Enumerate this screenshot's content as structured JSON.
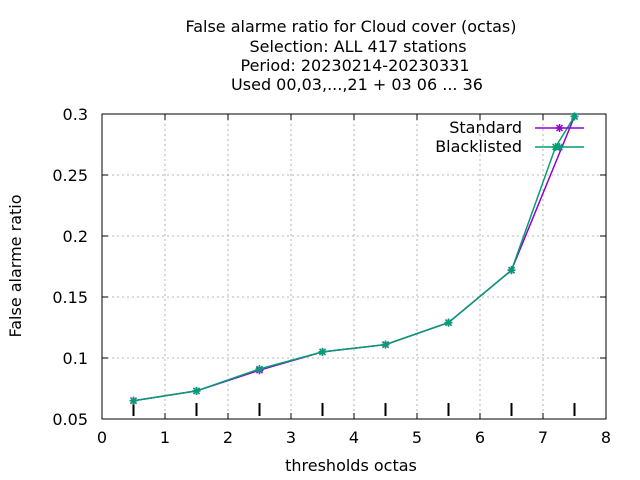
{
  "title_lines": [
    "False alarme ratio  for Cloud cover (octas)",
    "Selection: ALL    417 stations",
    "Period: 20230214-20230331",
    "Used  00,03,...,21  + 03 06 ... 36"
  ],
  "chart_data": {
    "type": "line",
    "xlabel": "thresholds octas",
    "ylabel": "False alarme ratio",
    "xlim": [
      0,
      8
    ],
    "ylim": [
      0.05,
      0.3
    ],
    "x_ticks": [
      0,
      1,
      2,
      3,
      4,
      5,
      6,
      7,
      8
    ],
    "y_ticks": [
      0.05,
      0.1,
      0.15,
      0.2,
      0.25,
      0.3
    ],
    "x_tick_labels": [
      "0",
      "1",
      "2",
      "3",
      "4",
      "5",
      "6",
      "7",
      "8"
    ],
    "y_tick_labels": [
      "0.05",
      "0.1",
      "0.15",
      "0.2",
      "0.25",
      "0.3"
    ],
    "grid": true,
    "legend_position": "top-right",
    "threshold_markers_x": [
      0.5,
      1.5,
      2.5,
      3.5,
      4.5,
      5.5,
      6.5,
      7.5
    ],
    "series": [
      {
        "name": "Standard",
        "color": "#9400d3",
        "x": [
          0.5,
          1.5,
          2.5,
          3.5,
          4.5,
          5.5,
          6.5,
          7.5
        ],
        "y": [
          0.065,
          0.073,
          0.09,
          0.105,
          0.111,
          0.129,
          0.172,
          0.298
        ]
      },
      {
        "name": "Blacklisted",
        "color": "#009e73",
        "x": [
          0.5,
          1.5,
          2.5,
          3.5,
          4.5,
          5.5,
          6.5,
          7.2,
          7.5
        ],
        "y": [
          0.065,
          0.073,
          0.091,
          0.105,
          0.111,
          0.129,
          0.172,
          0.273,
          0.298
        ]
      }
    ]
  }
}
